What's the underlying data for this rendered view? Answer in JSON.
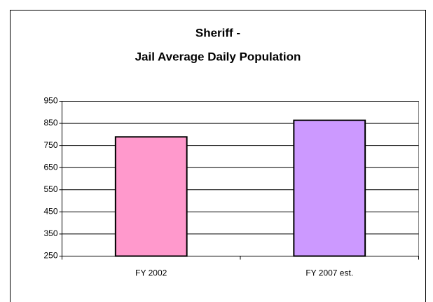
{
  "chart_data": {
    "type": "bar",
    "title": [
      "Sheriff -",
      "Jail Average Daily Population"
    ],
    "categories": [
      "FY 2002",
      "FY 2007 est."
    ],
    "values": [
      789,
      864
    ],
    "colors": [
      "#ff99cc",
      "#cc99ff"
    ],
    "ylim": [
      250,
      950
    ],
    "yticks": [
      250,
      350,
      450,
      550,
      650,
      750,
      850,
      950
    ],
    "grid": true
  }
}
